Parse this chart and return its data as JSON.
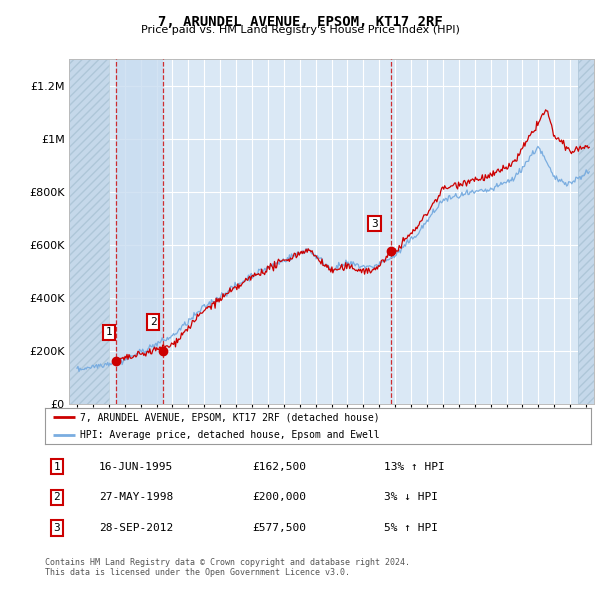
{
  "title": "7, ARUNDEL AVENUE, EPSOM, KT17 2RF",
  "subtitle": "Price paid vs. HM Land Registry's House Price Index (HPI)",
  "ylim": [
    0,
    1300000
  ],
  "xlim": [
    1992.5,
    2025.5
  ],
  "yticks": [
    0,
    200000,
    400000,
    600000,
    800000,
    1000000,
    1200000
  ],
  "ytick_labels": [
    "£0",
    "£200K",
    "£400K",
    "£600K",
    "£800K",
    "£1M",
    "£1.2M"
  ],
  "xticks": [
    1993,
    1994,
    1995,
    1996,
    1997,
    1998,
    1999,
    2000,
    2001,
    2002,
    2003,
    2004,
    2005,
    2006,
    2007,
    2008,
    2009,
    2010,
    2011,
    2012,
    2013,
    2014,
    2015,
    2016,
    2017,
    2018,
    2019,
    2020,
    2021,
    2022,
    2023,
    2024,
    2025
  ],
  "sale_dates_year": [
    1995.46,
    1998.41,
    2012.74
  ],
  "sale_prices": [
    162500,
    200000,
    577500
  ],
  "sale_labels": [
    "1",
    "2",
    "3"
  ],
  "line_color_red": "#cc0000",
  "line_color_blue": "#7aade0",
  "legend_entry1": "7, ARUNDEL AVENUE, EPSOM, KT17 2RF (detached house)",
  "legend_entry2": "HPI: Average price, detached house, Epsom and Ewell",
  "table_rows": [
    [
      "1",
      "16-JUN-1995",
      "£162,500",
      "13% ↑ HPI"
    ],
    [
      "2",
      "27-MAY-1998",
      "£200,000",
      "3% ↓ HPI"
    ],
    [
      "3",
      "28-SEP-2012",
      "£577,500",
      "5% ↑ HPI"
    ]
  ],
  "footer": "Contains HM Land Registry data © Crown copyright and database right 2024.\nThis data is licensed under the Open Government Licence v3.0.",
  "plot_bg": "#dae8f5",
  "hatch_left_end": 1995.0,
  "hatch_right_start": 2024.5,
  "shade_between_sales_1_2_start": 1995.46,
  "shade_between_sales_1_2_end": 1998.41
}
